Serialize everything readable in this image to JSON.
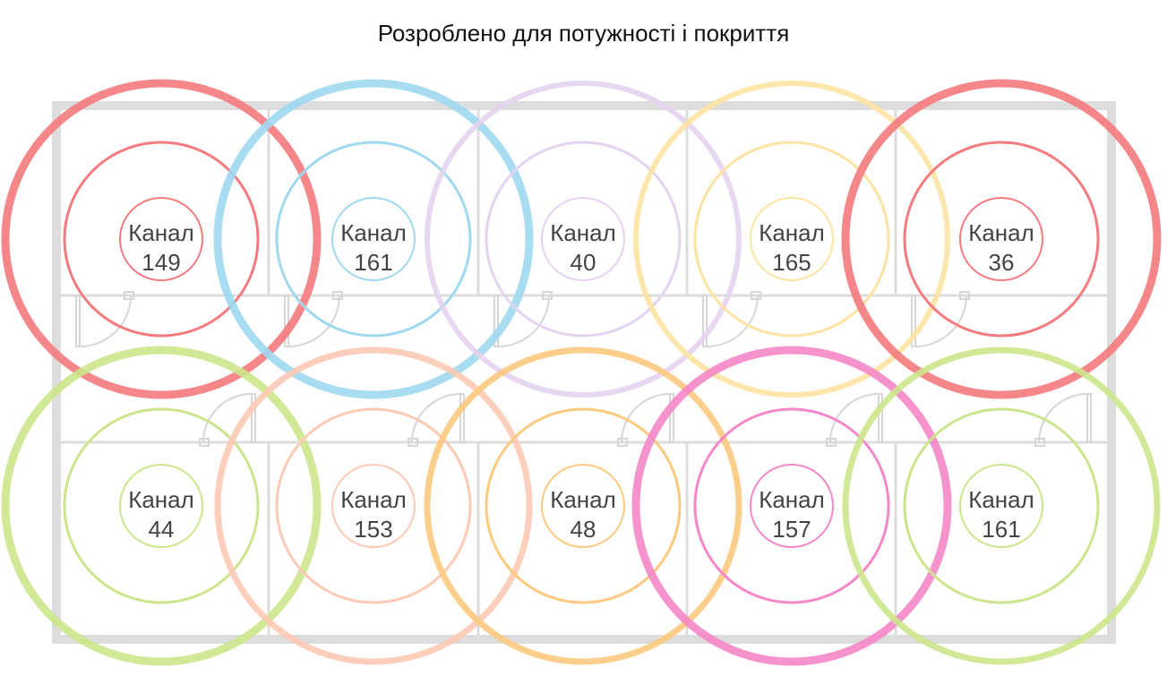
{
  "title": "Розроблено для потужності і покриття",
  "channel_label": "Канал",
  "access_points": [
    {
      "channel": "149",
      "color": "#f47a7e"
    },
    {
      "channel": "161",
      "color": "#9fd8ef"
    },
    {
      "channel": "40",
      "color": "#e4d3f0"
    },
    {
      "channel": "165",
      "color": "#fde3a2"
    },
    {
      "channel": "36",
      "color": "#f47a7e"
    },
    {
      "channel": "44",
      "color": "#cce58c"
    },
    {
      "channel": "153",
      "color": "#fcc9b4"
    },
    {
      "channel": "48",
      "color": "#fcc97e"
    },
    {
      "channel": "157",
      "color": "#f587c6"
    },
    {
      "channel": "161",
      "color": "#cce58c"
    }
  ],
  "floorplan_color": "#dddddd"
}
